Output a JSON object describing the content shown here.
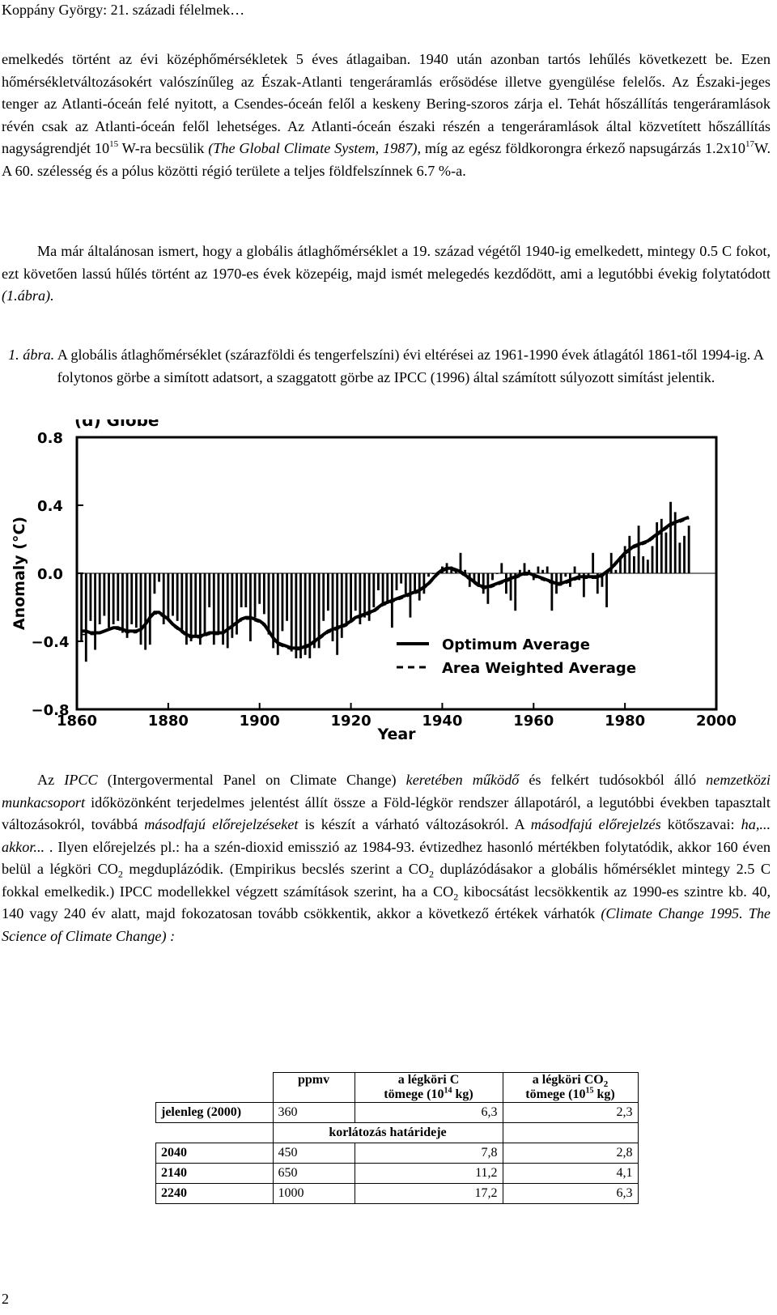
{
  "header": "Koppány György: 21. századi félelmek…",
  "page_number": "2",
  "p1": {
    "a": "emelkedés történt az évi középhőmérsékletek 5 éves átlagaiban. 1940 után azonban tartós lehűlés következett be. Ezen hőmérsékletváltozásokért valószínűleg az Észak-Atlanti tengeráramlás erősödése illetve gyengülése felelős. Az Északi-jeges tenger az Atlanti-óceán felé nyitott, a Csendes-óceán felől a keskeny Bering-szoros zárja el. Tehát hőszállítás tengeráramlások révén csak az Atlanti-óceán felől lehetséges. Az Atlanti-óceán északi részén a tengeráramlások által közvetített hőszállítás nagyságrendjét 10",
    "sup1": "15",
    "b": " W-ra becsülik ",
    "cite": "(The Global Climate System, 1987)",
    "c": ", míg az egész földkorongra érkező napsugárzás 1.2x10",
    "sup2": "17",
    "d": "W. A 60. szélesség és a pólus közötti régió területe a teljes földfelszínnek 6.7 %-a."
  },
  "p2": {
    "a": "Ma már általánosan ismert, hogy a globális átlaghőmérséklet a 19. század végétől 1940-ig emelkedett, mintegy 0.5 C fokot, ezt követően lassú hűlés történt az 1970-es évek közepéig, majd ismét melegedés kezdődött, ami a legutóbbi évekig folytatódott ",
    "ref": "(1.ábra)."
  },
  "caption": {
    "label": "1. ábra.",
    "text": " A globális átlaghőmérséklet (szárazföldi és tengerfelszíni) évi eltérései az 1961-1990 évek átlagától 1861-től 1994-ig. A folytonos görbe a simított adatsort, a szaggatott görbe az IPCC (1996) által számított súlyozott simítást jelentik."
  },
  "chart_data": {
    "type": "bar",
    "title": "(d) Globe",
    "ylabel": "Anomaly (°C)",
    "xlabel": "Year",
    "xlim": [
      1860,
      2000
    ],
    "ylim": [
      -0.8,
      0.8
    ],
    "xticks": [
      "1860",
      "1880",
      "1900",
      "1920",
      "1940",
      "1960",
      "1980",
      "2000"
    ],
    "yticks": [
      "0.8",
      "0.4",
      "0.0",
      "−0.4",
      "−0.8"
    ],
    "legend_position": "bottom-right",
    "legend": [
      "Optimum Average",
      "Area Weighted Average"
    ],
    "x": [
      1861,
      1862,
      1863,
      1864,
      1865,
      1866,
      1867,
      1868,
      1869,
      1870,
      1871,
      1872,
      1873,
      1874,
      1875,
      1876,
      1877,
      1878,
      1879,
      1880,
      1881,
      1882,
      1883,
      1884,
      1885,
      1886,
      1887,
      1888,
      1889,
      1890,
      1891,
      1892,
      1893,
      1894,
      1895,
      1896,
      1897,
      1898,
      1899,
      1900,
      1901,
      1902,
      1903,
      1904,
      1905,
      1906,
      1907,
      1908,
      1909,
      1910,
      1911,
      1912,
      1913,
      1914,
      1915,
      1916,
      1917,
      1918,
      1919,
      1920,
      1921,
      1922,
      1923,
      1924,
      1925,
      1926,
      1927,
      1928,
      1929,
      1930,
      1931,
      1932,
      1933,
      1934,
      1935,
      1936,
      1937,
      1938,
      1939,
      1940,
      1941,
      1942,
      1943,
      1944,
      1945,
      1946,
      1947,
      1948,
      1949,
      1950,
      1951,
      1952,
      1953,
      1954,
      1955,
      1956,
      1957,
      1958,
      1959,
      1960,
      1961,
      1962,
      1963,
      1964,
      1965,
      1966,
      1967,
      1968,
      1969,
      1970,
      1971,
      1972,
      1973,
      1974,
      1975,
      1976,
      1977,
      1978,
      1979,
      1980,
      1981,
      1982,
      1983,
      1984,
      1985,
      1986,
      1987,
      1988,
      1989,
      1990,
      1991,
      1992,
      1993,
      1994
    ],
    "series": [
      {
        "name": "annual",
        "values": [
          -0.4,
          -0.52,
          -0.28,
          -0.45,
          -0.3,
          -0.25,
          -0.32,
          -0.3,
          -0.28,
          -0.35,
          -0.38,
          -0.3,
          -0.32,
          -0.42,
          -0.45,
          -0.42,
          -0.12,
          -0.05,
          -0.3,
          -0.28,
          -0.25,
          -0.28,
          -0.35,
          -0.42,
          -0.4,
          -0.38,
          -0.42,
          -0.36,
          -0.2,
          -0.42,
          -0.36,
          -0.42,
          -0.44,
          -0.38,
          -0.36,
          -0.2,
          -0.2,
          -0.4,
          -0.26,
          -0.18,
          -0.24,
          -0.36,
          -0.44,
          -0.48,
          -0.34,
          -0.28,
          -0.46,
          -0.5,
          -0.5,
          -0.48,
          -0.5,
          -0.44,
          -0.44,
          -0.28,
          -0.22,
          -0.4,
          -0.48,
          -0.38,
          -0.3,
          -0.28,
          -0.22,
          -0.3,
          -0.26,
          -0.28,
          -0.2,
          -0.1,
          -0.18,
          -0.18,
          -0.32,
          -0.1,
          -0.06,
          -0.12,
          -0.26,
          -0.12,
          -0.16,
          -0.12,
          -0.02,
          0.0,
          0.0,
          0.04,
          0.06,
          0.04,
          0.02,
          0.12,
          0.02,
          -0.08,
          -0.06,
          -0.08,
          -0.12,
          -0.18,
          -0.04,
          0.0,
          0.06,
          -0.12,
          -0.16,
          -0.22,
          0.02,
          0.06,
          0.02,
          -0.04,
          0.04,
          0.02,
          0.04,
          -0.22,
          -0.12,
          -0.06,
          -0.02,
          -0.08,
          0.04,
          -0.04,
          -0.14,
          -0.02,
          0.12,
          -0.12,
          -0.08,
          -0.2,
          0.12,
          0.02,
          0.1,
          0.16,
          0.22,
          0.1,
          0.28,
          0.1,
          0.08,
          0.16,
          0.3,
          0.32,
          0.24,
          0.42,
          0.36,
          0.18,
          0.22,
          0.28
        ]
      },
      {
        "name": "Optimum Average",
        "values": [
          -0.34,
          -0.34,
          -0.35,
          -0.35,
          -0.35,
          -0.34,
          -0.33,
          -0.32,
          -0.32,
          -0.33,
          -0.34,
          -0.34,
          -0.34,
          -0.33,
          -0.3,
          -0.26,
          -0.23,
          -0.23,
          -0.25,
          -0.27,
          -0.3,
          -0.32,
          -0.34,
          -0.36,
          -0.37,
          -0.37,
          -0.37,
          -0.36,
          -0.35,
          -0.35,
          -0.35,
          -0.35,
          -0.33,
          -0.31,
          -0.29,
          -0.27,
          -0.26,
          -0.26,
          -0.27,
          -0.28,
          -0.3,
          -0.34,
          -0.38,
          -0.41,
          -0.42,
          -0.43,
          -0.44,
          -0.44,
          -0.44,
          -0.43,
          -0.42,
          -0.4,
          -0.38,
          -0.36,
          -0.34,
          -0.33,
          -0.32,
          -0.31,
          -0.3,
          -0.28,
          -0.26,
          -0.25,
          -0.24,
          -0.23,
          -0.22,
          -0.2,
          -0.18,
          -0.17,
          -0.16,
          -0.15,
          -0.14,
          -0.13,
          -0.12,
          -0.11,
          -0.1,
          -0.08,
          -0.06,
          -0.03,
          0.0,
          0.02,
          0.03,
          0.03,
          0.02,
          0.01,
          -0.01,
          -0.03,
          -0.05,
          -0.07,
          -0.08,
          -0.08,
          -0.07,
          -0.06,
          -0.05,
          -0.04,
          -0.03,
          -0.02,
          -0.01,
          0.0,
          0.0,
          -0.01,
          -0.02,
          -0.03,
          -0.04,
          -0.05,
          -0.06,
          -0.06,
          -0.05,
          -0.04,
          -0.03,
          -0.02,
          -0.02,
          -0.02,
          -0.02,
          -0.02,
          -0.01,
          0.01,
          0.03,
          0.06,
          0.09,
          0.12,
          0.14,
          0.16,
          0.17,
          0.18,
          0.19,
          0.21,
          0.23,
          0.25,
          0.27,
          0.29,
          0.3,
          0.31,
          0.32,
          0.33
        ]
      },
      {
        "name": "Area Weighted Average",
        "values": [
          -0.36,
          -0.36,
          -0.36,
          -0.36,
          -0.35,
          -0.34,
          -0.33,
          -0.33,
          -0.33,
          -0.34,
          -0.35,
          -0.35,
          -0.35,
          -0.33,
          -0.3,
          -0.27,
          -0.24,
          -0.24,
          -0.26,
          -0.28,
          -0.31,
          -0.33,
          -0.35,
          -0.37,
          -0.38,
          -0.38,
          -0.38,
          -0.37,
          -0.36,
          -0.36,
          -0.36,
          -0.35,
          -0.33,
          -0.31,
          -0.29,
          -0.28,
          -0.27,
          -0.27,
          -0.28,
          -0.29,
          -0.31,
          -0.35,
          -0.39,
          -0.42,
          -0.43,
          -0.44,
          -0.45,
          -0.45,
          -0.45,
          -0.44,
          -0.43,
          -0.41,
          -0.39,
          -0.37,
          -0.35,
          -0.34,
          -0.33,
          -0.32,
          -0.31,
          -0.29,
          -0.27,
          -0.26,
          -0.25,
          -0.24,
          -0.23,
          -0.21,
          -0.19,
          -0.18,
          -0.17,
          -0.16,
          -0.15,
          -0.14,
          -0.13,
          -0.12,
          -0.11,
          -0.09,
          -0.07,
          -0.04,
          -0.01,
          0.01,
          0.02,
          0.02,
          0.01,
          0.0,
          -0.02,
          -0.04,
          -0.06,
          -0.08,
          -0.09,
          -0.09,
          -0.08,
          -0.07,
          -0.06,
          -0.05,
          -0.04,
          -0.03,
          -0.02,
          -0.01,
          -0.01,
          -0.02,
          -0.03,
          -0.04,
          -0.05,
          -0.06,
          -0.07,
          -0.07,
          -0.06,
          -0.05,
          -0.04,
          -0.03,
          -0.03,
          -0.03,
          -0.03,
          -0.03,
          -0.02,
          0.0,
          0.02,
          0.05,
          0.08,
          0.11,
          0.13,
          0.15,
          0.16,
          0.17,
          0.18,
          0.2,
          0.22,
          0.24,
          0.26,
          0.28,
          0.29,
          0.3,
          0.31,
          0.32
        ]
      }
    ]
  },
  "p3": {
    "a": "Az ",
    "i1": "IPCC",
    "b": " (Intergovermental Panel on Climate Change) ",
    "i2": "keretében működő",
    "c": " és felkért tudósokból álló ",
    "i3": "nemzetközi munkacsoport",
    "d": " időközönként terjedelmes jelentést állít össze a Föld-légkör rendszer állapotáról, a legutóbbi években tapasztalt változásokról, továbbá ",
    "i4": "másodfajú előrejelzéseket",
    "e": " is készít a várható változásokról. A ",
    "i5": "másodfajú előrejelzés",
    "f": " kötőszavai: ",
    "i6": "ha,... akkor...",
    "g": " . Ilyen előrejelzés pl.: ha a szén-dioxid emisszió az 1984-93. évtizedhez hasonló mértékben folytatódik, akkor 160 éven belül a légköri CO",
    "s1": "2",
    "h": " megduplázódik. (Empirikus becslés szerint a CO",
    "s2": "2",
    "j": " duplázódásakor a globális hőmérséklet mintegy 2.5 C fokkal emelkedik.) IPCC modellekkel végzett számítások szerint, ha a CO",
    "s3": "2",
    "k": " kibocsátást lecsökkentik az 1990-es szintre kb. 40, 140 vagy 240 év alatt, majd fokozatosan tovább csökkentik, akkor a következő értékek várhatók ",
    "cite": "(Climate Change 1995. The Science of Climate Change) :"
  },
  "table": {
    "h_ppmv": "ppmv",
    "h_c1": "a légköri C",
    "h_c2": "tömege (10",
    "h_c2sup": "14",
    "h_c2end": " kg)",
    "h_co1": "a légköri CO",
    "h_co1sub": "2",
    "h_co2": "tömege (10",
    "h_co2sup": "15",
    "h_co2end": " kg)",
    "row0": {
      "label": "jelenleg (2000)",
      "ppmv": "360",
      "c": "6,3",
      "co2": "2,3"
    },
    "span": "korlátozás határideje",
    "rows": [
      {
        "label": "2040",
        "ppmv": "450",
        "c": "7,8",
        "co2": "2,8"
      },
      {
        "label": "2140",
        "ppmv": "650",
        "c": "11,2",
        "co2": "4,1"
      },
      {
        "label": "2240",
        "ppmv": "1000",
        "c": "17,2",
        "co2": "6,3"
      }
    ]
  }
}
